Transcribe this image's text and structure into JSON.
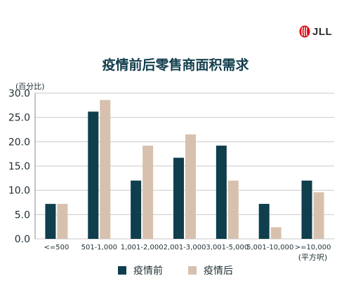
{
  "logo": {
    "text": "JLL"
  },
  "chart_data": {
    "type": "bar",
    "title": "疫情前后零售商面积需求",
    "ylabel": "(百分比)",
    "xlabel": "",
    "categories": [
      "<=500",
      "501-1,000",
      "1,001-2,000",
      "2,001-3,000",
      "3,001-5,000",
      "5,001-10,000",
      ">=10,000"
    ],
    "x_unit_note": "(平方呎)",
    "series": [
      {
        "name": "疫情前",
        "color": "#0f3e4d",
        "values": [
          7.2,
          26.2,
          12.0,
          16.7,
          19.2,
          7.2,
          12.0
        ]
      },
      {
        "name": "疫情后",
        "color": "#d7c1ae",
        "values": [
          7.2,
          28.6,
          19.2,
          21.5,
          12.0,
          2.4,
          9.6
        ]
      }
    ],
    "ylim": [
      0,
      30
    ],
    "yticks": [
      "0.0",
      "5.0",
      "10.0",
      "15.0",
      "20.0",
      "25.0",
      "30.0"
    ],
    "grid": true,
    "legend_position": "bottom"
  }
}
